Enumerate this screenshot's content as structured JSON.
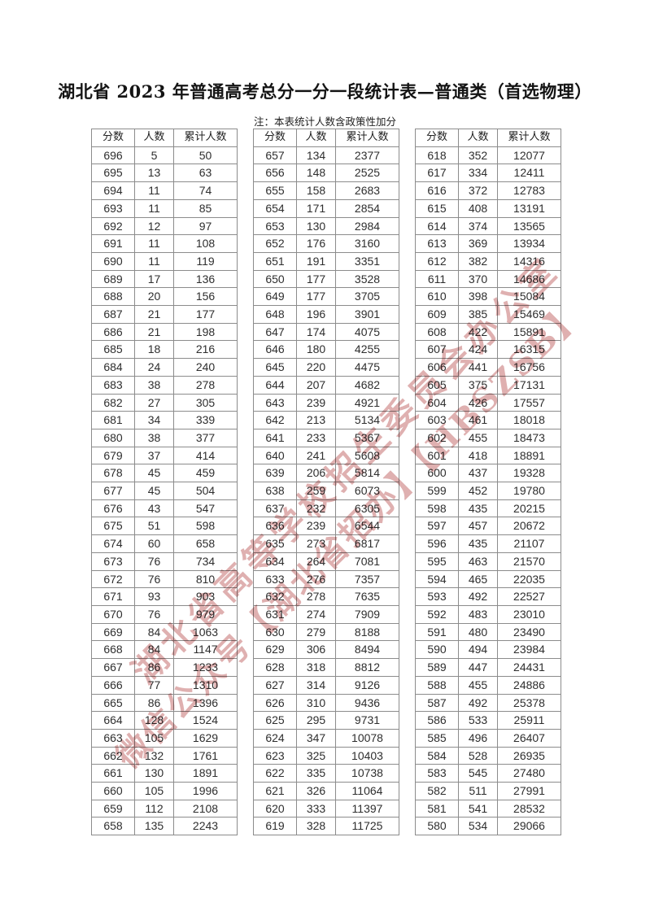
{
  "title": "湖北省 2023 年普通高考总分一分一段统计表—普通类（首选物理）",
  "note": "注：本表统计人数含政策性加分",
  "columns": [
    "分数",
    "人数",
    "累计人数"
  ],
  "watermark": {
    "line1": "湖北省高等学校招生委员会办公室",
    "line2": "微信公众号【湖北省招办】【HBSZSB】",
    "color": "#bf6161"
  },
  "tables": [
    {
      "rows": [
        [
          696,
          5,
          50
        ],
        [
          695,
          13,
          63
        ],
        [
          694,
          11,
          74
        ],
        [
          693,
          11,
          85
        ],
        [
          692,
          12,
          97
        ],
        [
          691,
          11,
          108
        ],
        [
          690,
          11,
          119
        ],
        [
          689,
          17,
          136
        ],
        [
          688,
          20,
          156
        ],
        [
          687,
          21,
          177
        ],
        [
          686,
          21,
          198
        ],
        [
          685,
          18,
          216
        ],
        [
          684,
          24,
          240
        ],
        [
          683,
          38,
          278
        ],
        [
          682,
          27,
          305
        ],
        [
          681,
          34,
          339
        ],
        [
          680,
          38,
          377
        ],
        [
          679,
          37,
          414
        ],
        [
          678,
          45,
          459
        ],
        [
          677,
          45,
          504
        ],
        [
          676,
          43,
          547
        ],
        [
          675,
          51,
          598
        ],
        [
          674,
          60,
          658
        ],
        [
          673,
          76,
          734
        ],
        [
          672,
          76,
          810
        ],
        [
          671,
          93,
          903
        ],
        [
          670,
          76,
          979
        ],
        [
          669,
          84,
          1063
        ],
        [
          668,
          84,
          1147
        ],
        [
          667,
          86,
          1233
        ],
        [
          666,
          77,
          1310
        ],
        [
          665,
          86,
          1396
        ],
        [
          664,
          128,
          1524
        ],
        [
          663,
          105,
          1629
        ],
        [
          662,
          132,
          1761
        ],
        [
          661,
          130,
          1891
        ],
        [
          660,
          105,
          1996
        ],
        [
          659,
          112,
          2108
        ],
        [
          658,
          135,
          2243
        ]
      ]
    },
    {
      "rows": [
        [
          657,
          134,
          2377
        ],
        [
          656,
          148,
          2525
        ],
        [
          655,
          158,
          2683
        ],
        [
          654,
          171,
          2854
        ],
        [
          653,
          130,
          2984
        ],
        [
          652,
          176,
          3160
        ],
        [
          651,
          191,
          3351
        ],
        [
          650,
          177,
          3528
        ],
        [
          649,
          177,
          3705
        ],
        [
          648,
          196,
          3901
        ],
        [
          647,
          174,
          4075
        ],
        [
          646,
          180,
          4255
        ],
        [
          645,
          220,
          4475
        ],
        [
          644,
          207,
          4682
        ],
        [
          643,
          239,
          4921
        ],
        [
          642,
          213,
          5134
        ],
        [
          641,
          233,
          5367
        ],
        [
          640,
          241,
          5608
        ],
        [
          639,
          206,
          5814
        ],
        [
          638,
          259,
          6073
        ],
        [
          637,
          232,
          6305
        ],
        [
          636,
          239,
          6544
        ],
        [
          635,
          273,
          6817
        ],
        [
          634,
          264,
          7081
        ],
        [
          633,
          276,
          7357
        ],
        [
          632,
          278,
          7635
        ],
        [
          631,
          274,
          7909
        ],
        [
          630,
          279,
          8188
        ],
        [
          629,
          306,
          8494
        ],
        [
          628,
          318,
          8812
        ],
        [
          627,
          314,
          9126
        ],
        [
          626,
          310,
          9436
        ],
        [
          625,
          295,
          9731
        ],
        [
          624,
          347,
          10078
        ],
        [
          623,
          325,
          10403
        ],
        [
          622,
          335,
          10738
        ],
        [
          621,
          326,
          11064
        ],
        [
          620,
          333,
          11397
        ],
        [
          619,
          328,
          11725
        ]
      ]
    },
    {
      "rows": [
        [
          618,
          352,
          12077
        ],
        [
          617,
          334,
          12411
        ],
        [
          616,
          372,
          12783
        ],
        [
          615,
          408,
          13191
        ],
        [
          614,
          374,
          13565
        ],
        [
          613,
          369,
          13934
        ],
        [
          612,
          382,
          14316
        ],
        [
          611,
          370,
          14686
        ],
        [
          610,
          398,
          15084
        ],
        [
          609,
          385,
          15469
        ],
        [
          608,
          422,
          15891
        ],
        [
          607,
          424,
          16315
        ],
        [
          606,
          441,
          16756
        ],
        [
          605,
          375,
          17131
        ],
        [
          604,
          426,
          17557
        ],
        [
          603,
          461,
          18018
        ],
        [
          602,
          455,
          18473
        ],
        [
          601,
          418,
          18891
        ],
        [
          600,
          437,
          19328
        ],
        [
          599,
          452,
          19780
        ],
        [
          598,
          435,
          20215
        ],
        [
          597,
          457,
          20672
        ],
        [
          596,
          435,
          21107
        ],
        [
          595,
          463,
          21570
        ],
        [
          594,
          465,
          22035
        ],
        [
          593,
          492,
          22527
        ],
        [
          592,
          483,
          23010
        ],
        [
          591,
          480,
          23490
        ],
        [
          590,
          494,
          23984
        ],
        [
          589,
          447,
          24431
        ],
        [
          588,
          455,
          24886
        ],
        [
          587,
          492,
          25378
        ],
        [
          586,
          533,
          25911
        ],
        [
          585,
          496,
          26407
        ],
        [
          584,
          528,
          26935
        ],
        [
          583,
          545,
          27480
        ],
        [
          582,
          511,
          27991
        ],
        [
          581,
          541,
          28532
        ],
        [
          580,
          534,
          29066
        ]
      ]
    }
  ]
}
